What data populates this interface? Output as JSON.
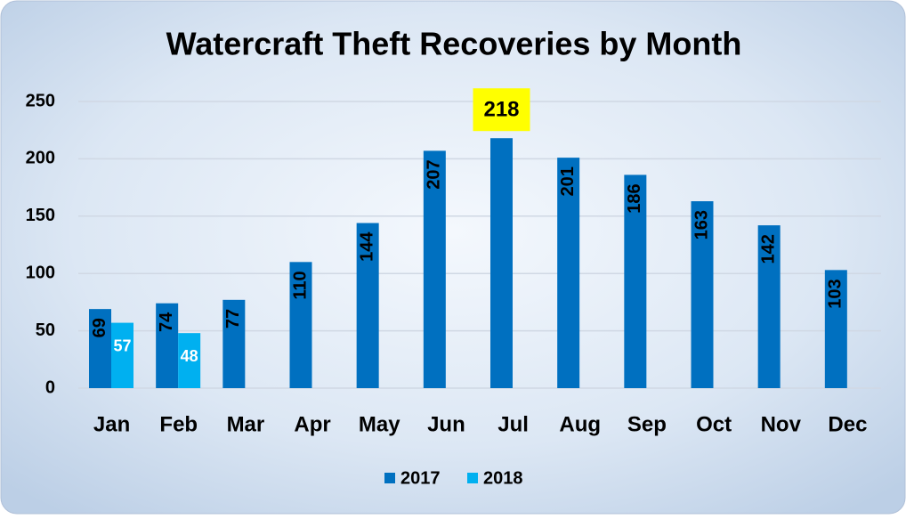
{
  "chart_data": {
    "type": "bar",
    "title": "Watercraft Theft Recoveries by Month",
    "categories": [
      "Jan",
      "Feb",
      "Mar",
      "Apr",
      "May",
      "Jun",
      "Jul",
      "Aug",
      "Sep",
      "Oct",
      "Nov",
      "Dec"
    ],
    "series": [
      {
        "name": "2017",
        "color": "#0070c0",
        "values": [
          69,
          74,
          77,
          110,
          144,
          207,
          218,
          201,
          186,
          163,
          142,
          103
        ]
      },
      {
        "name": "2018",
        "color": "#00b0f0",
        "values": [
          57,
          48,
          null,
          null,
          null,
          null,
          null,
          null,
          null,
          null,
          null,
          null
        ]
      }
    ],
    "ylim": [
      0,
      250
    ],
    "yticks": [
      0,
      50,
      100,
      150,
      200,
      250
    ],
    "grid": true,
    "legend": "bottom"
  }
}
